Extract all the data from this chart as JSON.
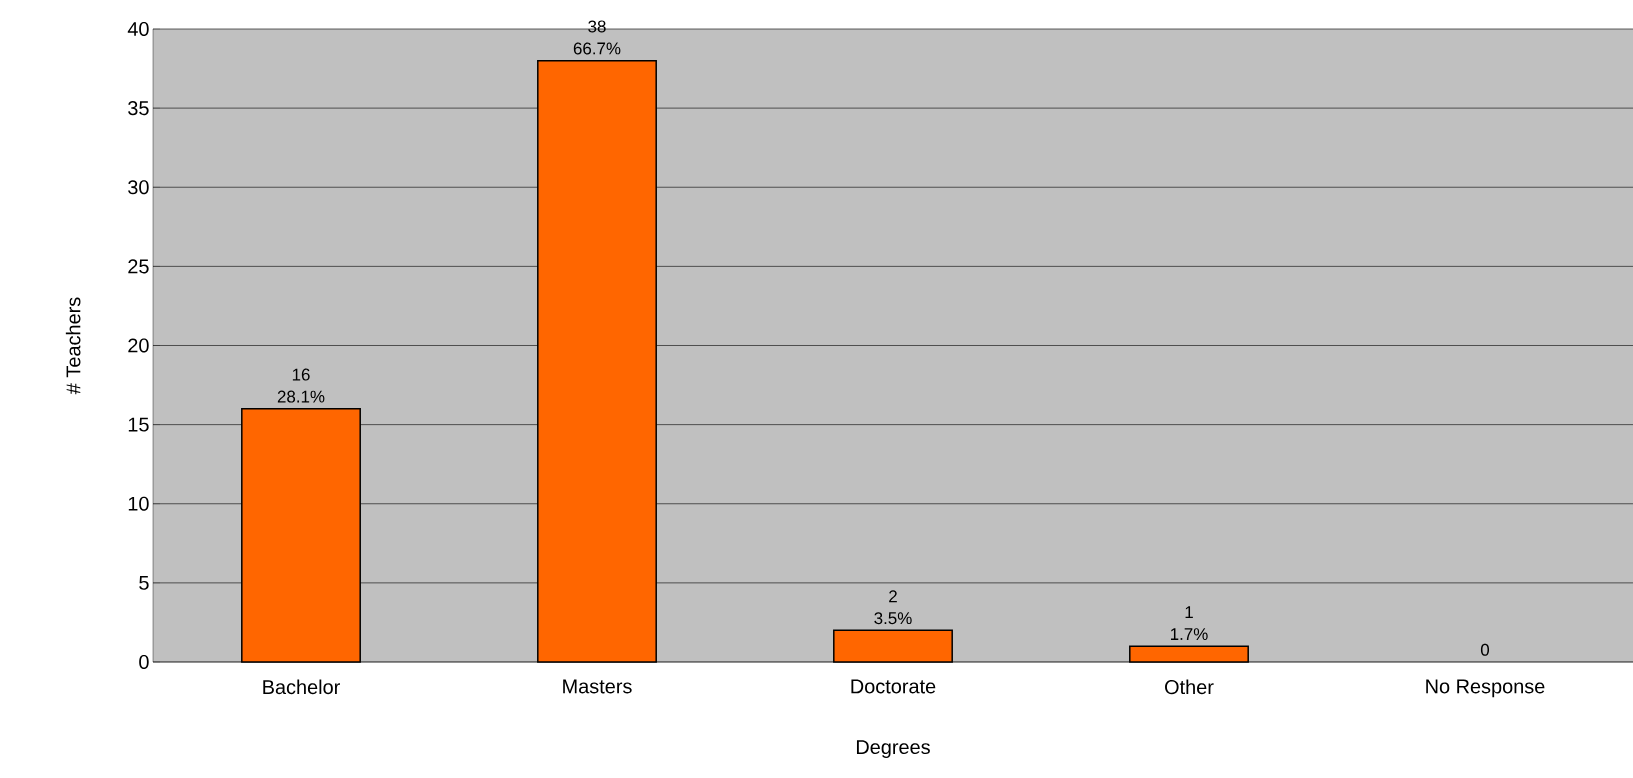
{
  "chart_data": {
    "type": "bar",
    "xlabel": "Degrees",
    "ylabel": "# Teachers",
    "categories": [
      "Bachelor",
      "Masters",
      "Doctorate",
      "Other",
      "No Response"
    ],
    "values": [
      16,
      38,
      2,
      1,
      0
    ],
    "color": "#ff6600",
    "ylim": [
      0,
      40
    ],
    "yticks": [
      0,
      5,
      10,
      15,
      20,
      25,
      30,
      35,
      40
    ],
    "grid": "y",
    "data_labels": true,
    "annotations": [
      {
        "text": "28.1%",
        "x": "Bachelor",
        "y": 16
      },
      {
        "text": "66.7%",
        "x": "Masters",
        "y": 38
      },
      {
        "text": "3.5%",
        "x": "Doctorate",
        "y": 2
      },
      {
        "text": "1.7%",
        "x": "Other",
        "y": 1
      }
    ]
  }
}
